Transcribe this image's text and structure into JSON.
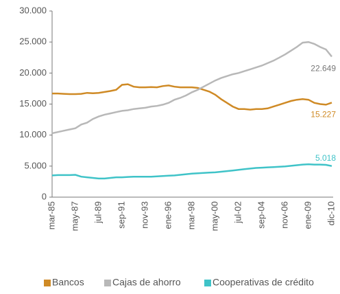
{
  "chart_data": {
    "type": "line",
    "categories": [
      "mar-85",
      null,
      null,
      null,
      "may-87",
      null,
      null,
      null,
      "jul-89",
      null,
      null,
      null,
      "sep-91",
      null,
      null,
      null,
      "nov-93",
      null,
      null,
      null,
      "ene-96",
      null,
      null,
      null,
      "mar-98",
      null,
      null,
      null,
      "may-00",
      null,
      null,
      null,
      "jul-02",
      null,
      null,
      null,
      "sep-04",
      null,
      null,
      null,
      "nov-06",
      null,
      null,
      null,
      "ene-09",
      null,
      null,
      null,
      "dic-10"
    ],
    "ylim": [
      0,
      30000
    ],
    "yticks": [
      0,
      {
        "value": 5000,
        "label": "5.000"
      },
      {
        "value": 10000,
        "label": "10.000"
      },
      {
        "value": 15000,
        "label": "15.000"
      },
      {
        "value": 20000,
        "label": "20.000"
      },
      {
        "value": 25000,
        "label": "25.000"
      },
      {
        "value": 30000,
        "label": "30.000"
      }
    ],
    "legend": "bottom",
    "series": [
      {
        "name": "Bancos",
        "color": "#cf8a25",
        "values": [
          16700,
          16700,
          16650,
          16600,
          16600,
          16650,
          16800,
          16750,
          16800,
          16950,
          17100,
          17300,
          18100,
          18200,
          17800,
          17700,
          17700,
          17750,
          17700,
          17900,
          18000,
          17800,
          17700,
          17700,
          17700,
          17600,
          17300,
          17000,
          16500,
          15800,
          15200,
          14600,
          14200,
          14200,
          14100,
          14200,
          14200,
          14300,
          14600,
          14900,
          15200,
          15500,
          15700,
          15800,
          15700,
          15200,
          15000,
          14900,
          15227
        ],
        "value_labels": [
          null,
          null,
          null,
          null,
          null,
          null,
          null,
          null,
          null,
          null,
          null,
          null,
          null,
          null,
          null,
          null,
          null,
          null,
          null,
          null,
          null,
          null,
          null,
          null,
          null,
          null,
          null,
          null,
          null,
          null,
          null,
          null,
          null,
          null,
          null,
          null,
          null,
          null,
          null,
          null,
          null,
          null,
          null,
          null,
          null,
          null,
          null,
          null,
          "15.227"
        ]
      },
      {
        "name": "Cajas de ahorro",
        "color": "#b8b8b8",
        "values": [
          10300,
          10500,
          10700,
          10900,
          11100,
          11700,
          12000,
          12600,
          13000,
          13300,
          13500,
          13700,
          13900,
          14000,
          14200,
          14300,
          14400,
          14600,
          14700,
          14900,
          15200,
          15700,
          16000,
          16400,
          16900,
          17300,
          17800,
          18300,
          18800,
          19200,
          19500,
          19800,
          20000,
          20300,
          20600,
          20900,
          21200,
          21600,
          22000,
          22500,
          23000,
          23600,
          24200,
          24900,
          25000,
          24700,
          24200,
          23800,
          22649
        ],
        "value_labels": [
          null,
          null,
          null,
          null,
          null,
          null,
          null,
          null,
          null,
          null,
          null,
          null,
          null,
          null,
          null,
          null,
          null,
          null,
          null,
          null,
          null,
          null,
          null,
          null,
          null,
          null,
          null,
          null,
          null,
          null,
          null,
          null,
          null,
          null,
          null,
          null,
          null,
          null,
          null,
          null,
          null,
          null,
          null,
          null,
          null,
          null,
          null,
          null,
          "22.649"
        ]
      },
      {
        "name": "Cooperativas de crédito",
        "color": "#3fc3c8",
        "values": [
          3500,
          3550,
          3550,
          3550,
          3600,
          3300,
          3200,
          3100,
          3000,
          3000,
          3100,
          3200,
          3200,
          3250,
          3300,
          3300,
          3300,
          3300,
          3350,
          3400,
          3450,
          3500,
          3600,
          3700,
          3800,
          3850,
          3900,
          3950,
          4000,
          4100,
          4200,
          4300,
          4400,
          4500,
          4600,
          4700,
          4750,
          4800,
          4850,
          4900,
          4950,
          5050,
          5150,
          5250,
          5300,
          5250,
          5250,
          5200,
          5018
        ],
        "value_labels": [
          null,
          null,
          null,
          null,
          null,
          null,
          null,
          null,
          null,
          null,
          null,
          null,
          null,
          null,
          null,
          null,
          null,
          null,
          null,
          null,
          null,
          null,
          null,
          null,
          null,
          null,
          null,
          null,
          null,
          null,
          null,
          null,
          null,
          null,
          null,
          null,
          null,
          null,
          null,
          null,
          null,
          null,
          null,
          null,
          null,
          null,
          null,
          null,
          "5.018"
        ]
      }
    ]
  }
}
